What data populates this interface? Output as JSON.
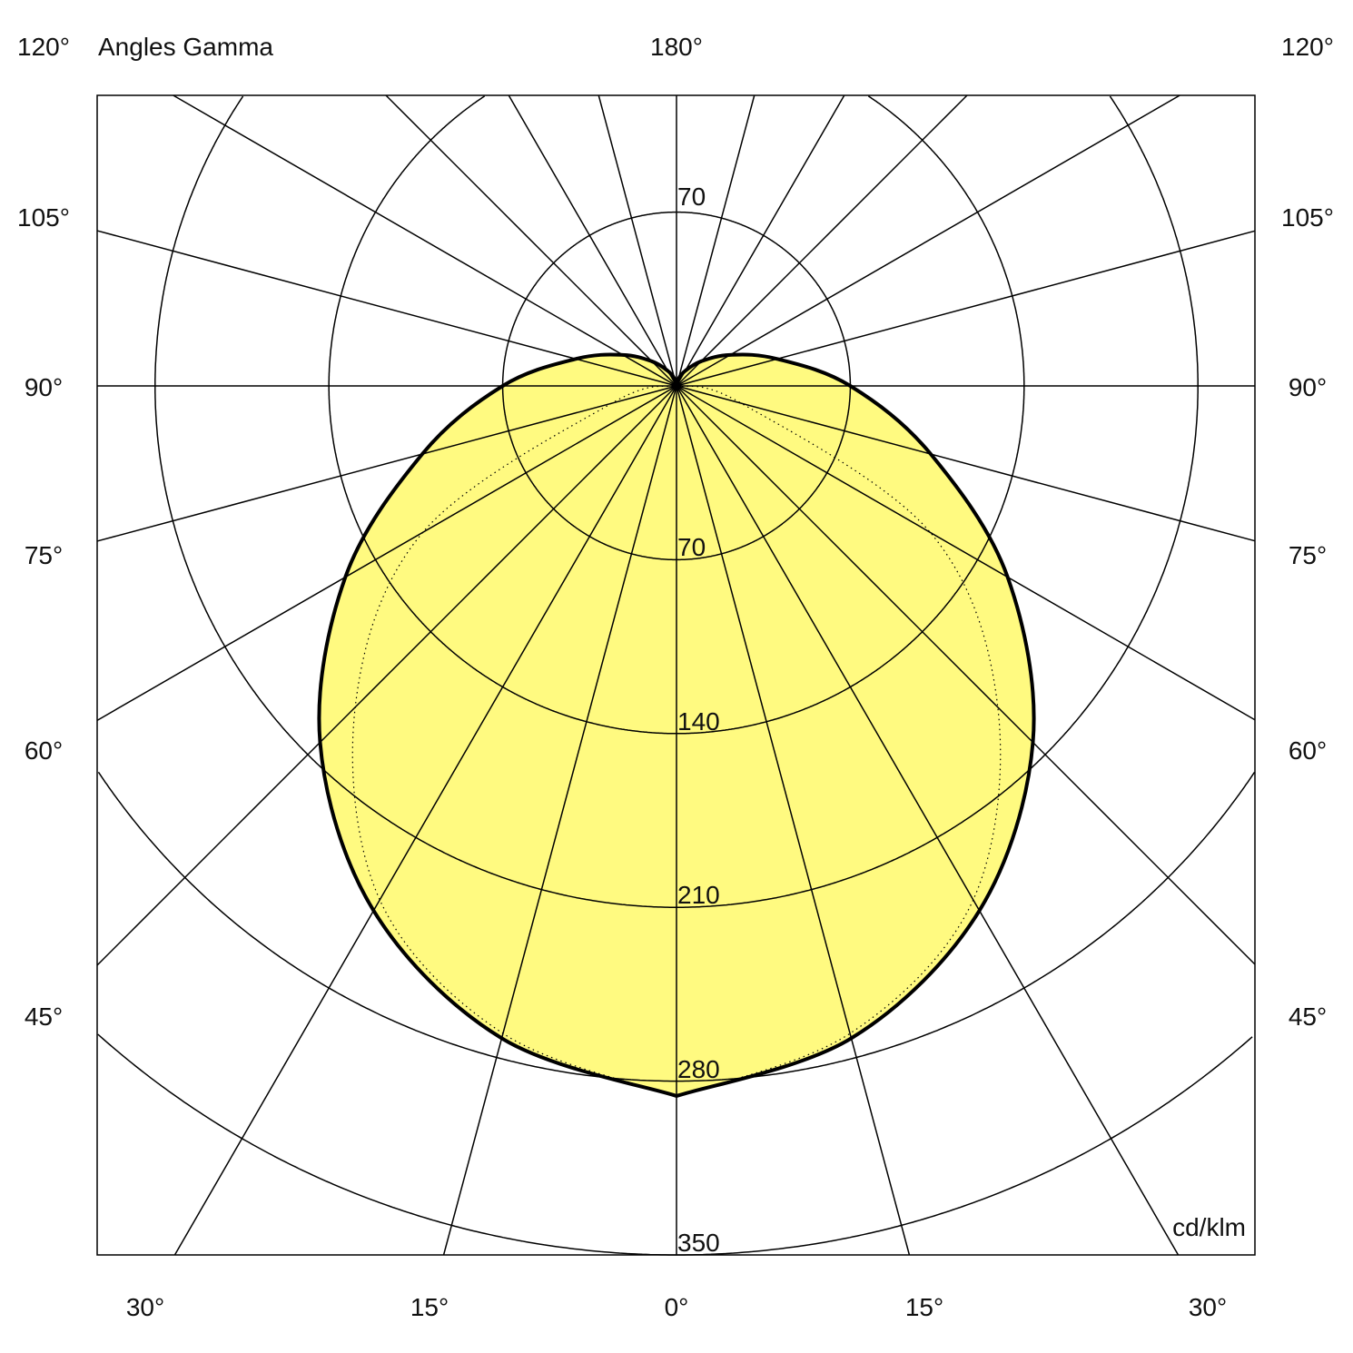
{
  "chart_data": {
    "type": "polar",
    "title": "Angles Gamma",
    "unit": "cd/klm",
    "radial_ticks": [
      70,
      140,
      210,
      280,
      350
    ],
    "radial_top_label": "70",
    "radial_range": [
      0,
      350
    ],
    "grid": true,
    "angle_step_deg": 15,
    "angle_labels": {
      "top": "180°",
      "left": [
        "120°",
        "105°",
        "90°",
        "75°",
        "60°",
        "45°"
      ],
      "right": [
        "120°",
        "105°",
        "90°",
        "75°",
        "60°",
        "45°"
      ],
      "bottom": [
        "30°",
        "15°",
        "0°",
        "15°",
        "30°"
      ]
    },
    "gamma": [
      0,
      15,
      30,
      45,
      60,
      75,
      90,
      105,
      120,
      135,
      150,
      165,
      180
    ],
    "series": [
      {
        "style": "solid-filled",
        "values": [
          286,
          272,
          244,
          203,
          154,
          106,
          70,
          42,
          25,
          14,
          7,
          3,
          0
        ]
      },
      {
        "style": "dotted",
        "values": [
          286,
          270,
          239,
          183,
          118,
          27,
          0,
          0,
          0,
          0,
          0,
          0,
          0
        ]
      }
    ],
    "fill_color": "#FFFA80",
    "line_color": "#000000"
  }
}
